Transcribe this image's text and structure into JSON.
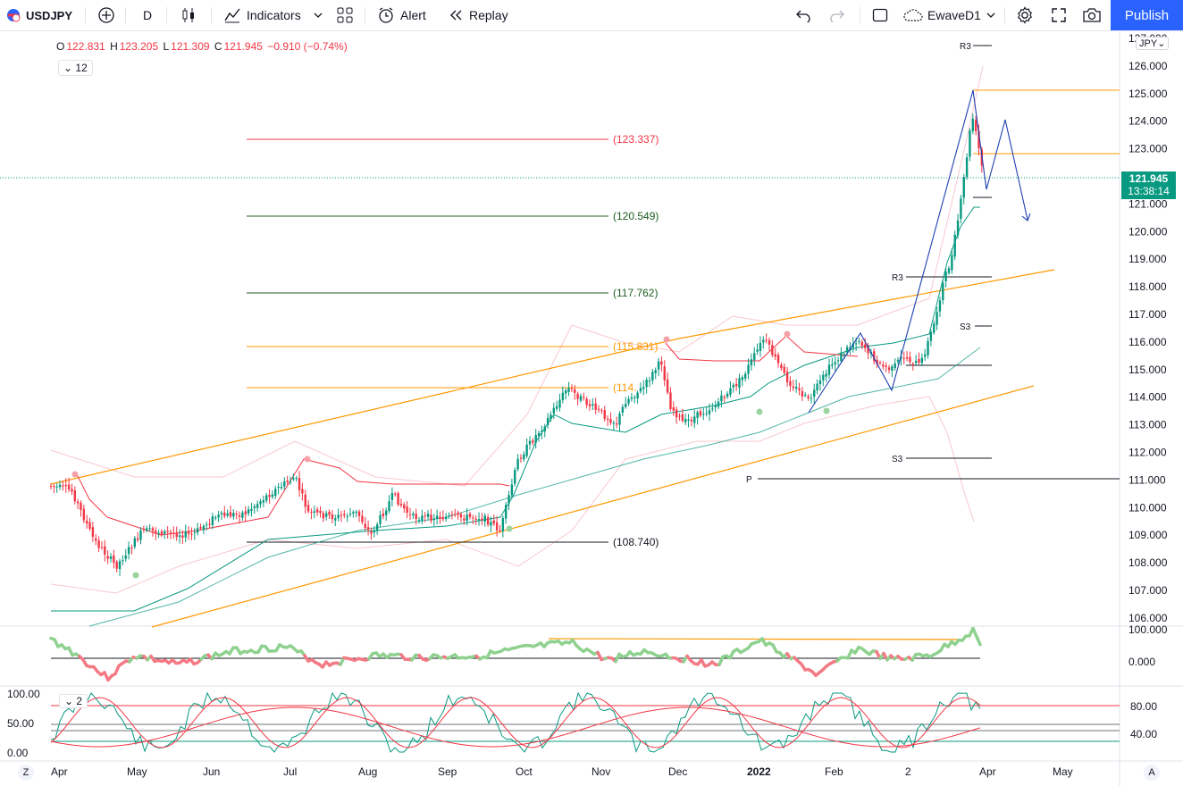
{
  "toolbar": {
    "symbol": "USDJPY",
    "interval": "D",
    "indicators_label": "Indicators",
    "alert_label": "Alert",
    "replay_label": "Replay",
    "layout_name": "EwaveD1",
    "publish_label": "Publish"
  },
  "legend": {
    "open_key": "O",
    "open": "122.831",
    "high_key": "H",
    "high": "123.205",
    "low_key": "L",
    "low": "121.309",
    "close_key": "C",
    "close": "121.945",
    "change": "−0.910 (−0.74%)",
    "collapse_count": "12",
    "stoch_tag": "2"
  },
  "price_axis": {
    "currency": "JPY",
    "ticks": [
      "127.000",
      "126.000",
      "125.000",
      "124.000",
      "123.000",
      "122.000",
      "121.000",
      "120.000",
      "119.000",
      "118.000",
      "117.000",
      "116.000",
      "115.000",
      "114.000",
      "113.000",
      "112.000",
      "111.000",
      "110.000",
      "109.000",
      "108.000",
      "107.000",
      "106.000"
    ],
    "current_price": "121.945",
    "countdown": "13:38:14"
  },
  "osc_axis": {
    "ticks": [
      "100.000",
      "0.000"
    ]
  },
  "stoch_axis": {
    "right_ticks": [
      "80.00",
      "40.00"
    ],
    "left_ticks": [
      "100.00",
      "50.00",
      "0.00"
    ]
  },
  "time_axis": [
    "Apr",
    "May",
    "Jun",
    "Jul",
    "Aug",
    "Sep",
    "Oct",
    "Nov",
    "Dec",
    "2022",
    "Feb",
    "2",
    "Apr",
    "May"
  ],
  "fib_levels": [
    "(123.337)",
    "(120.549)",
    "(117.762)",
    "(115.831)",
    "(114.",
    "(108.740)"
  ],
  "pivot_labels": {
    "r3_top": "R3",
    "r3_mid": "R3",
    "s3_a": "S3",
    "s3_b": "S3",
    "p": "P"
  },
  "corner_buttons": {
    "left": "Z",
    "right": "A"
  },
  "colors": {
    "up": "#089981",
    "down": "#f23645",
    "accent": "#2962ff",
    "channel": "#ff9800"
  }
}
